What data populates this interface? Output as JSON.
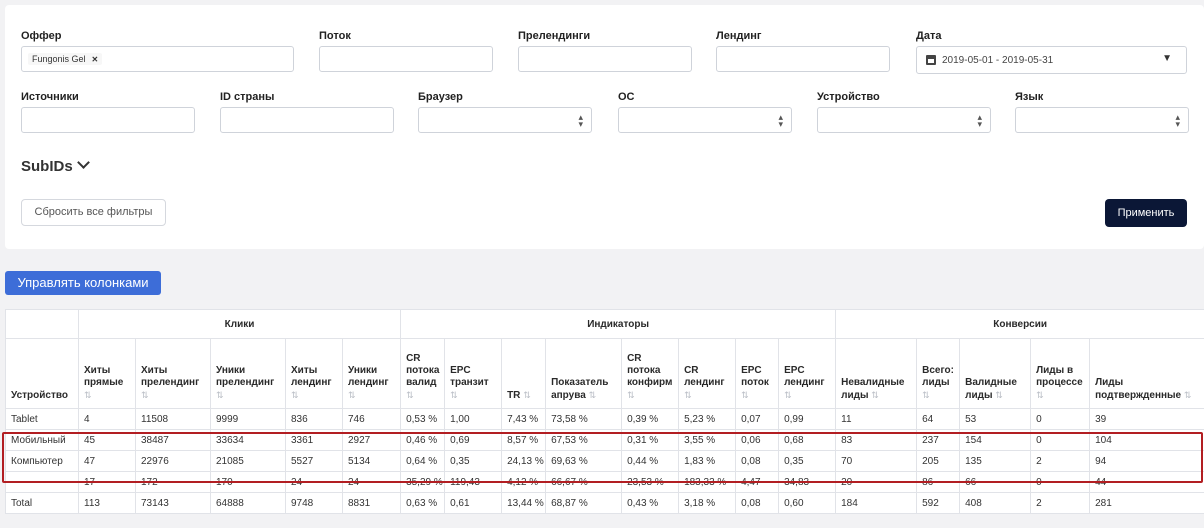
{
  "filters": {
    "offer": {
      "label": "Оффер",
      "tag": "Fungonis Gel"
    },
    "stream": {
      "label": "Поток"
    },
    "prelandings": {
      "label": "Прелендинги"
    },
    "landing": {
      "label": "Лендинг"
    },
    "date": {
      "label": "Дата",
      "value": "2019-05-01 - 2019-05-31"
    },
    "sources": {
      "label": "Источники"
    },
    "country_id": {
      "label": "ID страны"
    },
    "browser": {
      "label": "Браузер"
    },
    "os": {
      "label": "ОС"
    },
    "device": {
      "label": "Устройство"
    },
    "language": {
      "label": "Язык"
    }
  },
  "subids_label": "SubIDs",
  "reset_button": "Сбросить все фильтры",
  "apply_button": "Применить",
  "manage_columns_button": "Управлять колонками",
  "table": {
    "groups": {
      "clicks": "Клики",
      "indicators": "Индикаторы",
      "conversions": "Конверсии"
    },
    "columns": [
      "Устройство",
      "Хиты прямые",
      "Хиты прелендинг",
      "Уники прелендинг",
      "Хиты лендинг",
      "Уники лендинг",
      "CR потока валид",
      "EPC транзит",
      "TR",
      "Показатель апрува",
      "CR потока конфирм",
      "CR лендинг",
      "EPC поток",
      "EPC лендинг",
      "Невалидные лиды",
      "Всего: лиды",
      "Валидные лиды",
      "Лиды в процессе",
      "Лиды подтвержденные"
    ],
    "sort_icon": "⇅",
    "rows": [
      [
        "Tablet",
        "4",
        "11508",
        "9999",
        "836",
        "746",
        "0,53 %",
        "1,00",
        "7,43 %",
        "73,58 %",
        "0,39 %",
        "5,23 %",
        "0,07",
        "0,99",
        "11",
        "64",
        "53",
        "0",
        "39"
      ],
      [
        "Мобильный",
        "45",
        "38487",
        "33634",
        "3361",
        "2927",
        "0,46 %",
        "0,69",
        "8,57 %",
        "67,53 %",
        "0,31 %",
        "3,55 %",
        "0,06",
        "0,68",
        "83",
        "237",
        "154",
        "0",
        "104"
      ],
      [
        "Компьютер",
        "47",
        "22976",
        "21085",
        "5527",
        "5134",
        "0,64 %",
        "0,35",
        "24,13 %",
        "69,63 %",
        "0,44 %",
        "1,83 %",
        "0,08",
        "0,35",
        "70",
        "205",
        "135",
        "2",
        "94"
      ],
      [
        "",
        "17",
        "172",
        "170",
        "24",
        "24",
        "35,29 %",
        "119,43",
        "4,12 %",
        "66,67 %",
        "23,53 %",
        "183,33 %",
        "4,47",
        "34,83",
        "20",
        "86",
        "66",
        "0",
        "44"
      ],
      [
        "Total",
        "113",
        "73143",
        "64888",
        "9748",
        "8831",
        "0,63 %",
        "0,61",
        "13,44 %",
        "68,87 %",
        "0,43 %",
        "3,18 %",
        "0,08",
        "0,60",
        "184",
        "592",
        "408",
        "2",
        "281"
      ]
    ]
  }
}
